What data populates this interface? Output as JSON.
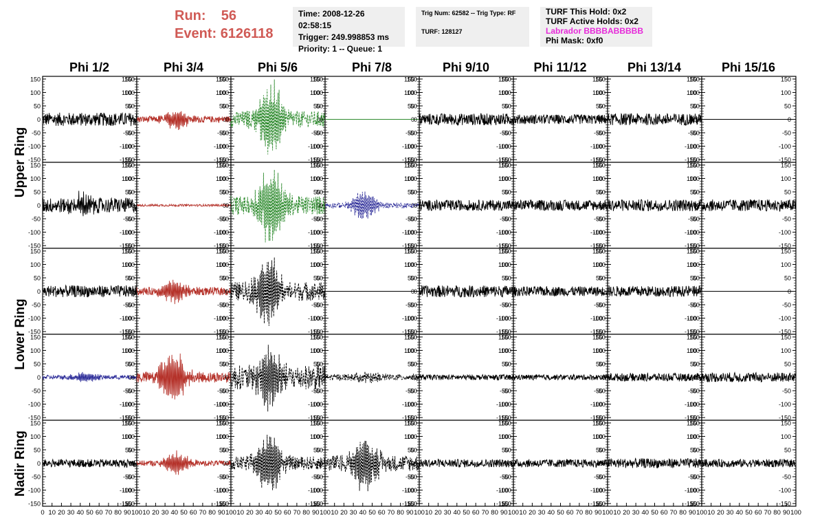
{
  "header": {
    "run_label": "Run:",
    "run_value": "56",
    "event_label": "Event:",
    "event_value": "6126118",
    "time": "Time: 2008-12-26 02:58:15",
    "trigger": "Trigger: 249.998853 ms",
    "priority": "Priority: 1 -- Queue: 1",
    "trig_num": "Trig Num: 62582 -- Trig Type: RF",
    "turf": "TURF: 128127",
    "turf_hold": "TURF This Hold: 0x2",
    "turf_active": "TURF Active Holds: 0x2",
    "labrador": "Labrador BBBBABBBBB",
    "phi_mask": "Phi Mask: 0xf0"
  },
  "colors": {
    "red": "#b5322a",
    "green": "#2e8b2e",
    "blue": "#2f2f9a",
    "black": "#000000",
    "header_accent": "#d05a55",
    "magenta": "#e629d9"
  },
  "chart_data": {
    "type": "line",
    "columns": [
      "Phi 1/2",
      "Phi 3/4",
      "Phi 5/6",
      "Phi 7/8",
      "Phi 9/10",
      "Phi 11/12",
      "Phi 13/14",
      "Phi 15/16"
    ],
    "rows": [
      "Upper Ring",
      "Lower Ring",
      "Nadir Ring"
    ],
    "xlim": [
      0,
      100
    ],
    "ylim": [
      -160,
      160
    ],
    "y_ticks": [
      -150,
      -100,
      -50,
      0,
      50,
      100,
      150
    ],
    "x_ticks": [
      0,
      10,
      20,
      30,
      40,
      50,
      60,
      70,
      80,
      90,
      100
    ],
    "panels": [
      [
        {
          "color": "black",
          "style": "solid",
          "amp": 25,
          "peak": 0,
          "center": 45
        },
        {
          "color": "red",
          "style": "solid",
          "amp": 12,
          "peak": 40,
          "center": 42
        },
        {
          "color": "green",
          "style": "dashed",
          "amp": 30,
          "peak": 150,
          "center": 42
        },
        {
          "color": "green",
          "style": "flat",
          "amp": 0,
          "peak": 0,
          "center": 50
        },
        {
          "color": "black",
          "style": "solid",
          "amp": 22,
          "peak": 0,
          "center": 50
        },
        {
          "color": "black",
          "style": "solid",
          "amp": 18,
          "peak": 0,
          "center": 50
        },
        {
          "color": "black",
          "style": "solid",
          "amp": 22,
          "peak": 0,
          "center": 50
        },
        {
          "color": "black",
          "style": "flat",
          "amp": 0,
          "peak": 0,
          "center": 50
        }
      ],
      [
        {
          "color": "black",
          "style": "solid",
          "amp": 28,
          "peak": 40,
          "center": 42
        },
        {
          "color": "red",
          "style": "solid",
          "amp": 4,
          "peak": 0,
          "center": 50
        },
        {
          "color": "green",
          "style": "dashed",
          "amp": 35,
          "peak": 150,
          "center": 42
        },
        {
          "color": "blue",
          "style": "dashed",
          "amp": 10,
          "peak": 60,
          "center": 42
        },
        {
          "color": "black",
          "style": "solid",
          "amp": 20,
          "peak": 0,
          "center": 50
        },
        {
          "color": "black",
          "style": "solid",
          "amp": 20,
          "peak": 0,
          "center": 50
        },
        {
          "color": "black",
          "style": "solid",
          "amp": 22,
          "peak": 0,
          "center": 50
        },
        {
          "color": "black",
          "style": "solid",
          "amp": 22,
          "peak": 0,
          "center": 50
        }
      ],
      [
        {
          "color": "black",
          "style": "solid",
          "amp": 22,
          "peak": 0,
          "center": 50
        },
        {
          "color": "red",
          "style": "solid",
          "amp": 15,
          "peak": 45,
          "center": 40
        },
        {
          "color": "black",
          "style": "dashed",
          "amp": 35,
          "peak": 130,
          "center": 40
        },
        {
          "color": "black",
          "style": "flat",
          "amp": 0,
          "peak": 0,
          "center": 50
        },
        {
          "color": "black",
          "style": "solid",
          "amp": 22,
          "peak": 0,
          "center": 50
        },
        {
          "color": "black",
          "style": "solid",
          "amp": 18,
          "peak": 0,
          "center": 50
        },
        {
          "color": "black",
          "style": "solid",
          "amp": 20,
          "peak": 0,
          "center": 50
        },
        {
          "color": "black",
          "style": "flat",
          "amp": 0,
          "peak": 0,
          "center": 50
        }
      ],
      [
        {
          "color": "blue",
          "style": "solid",
          "amp": 8,
          "peak": 18,
          "center": 45
        },
        {
          "color": "red",
          "style": "solid",
          "amp": 20,
          "peak": 110,
          "center": 38
        },
        {
          "color": "black",
          "style": "dashed",
          "amp": 45,
          "peak": 120,
          "center": 40
        },
        {
          "color": "black",
          "style": "dashed",
          "amp": 12,
          "peak": 20,
          "center": 45
        },
        {
          "color": "black",
          "style": "solid",
          "amp": 10,
          "peak": 0,
          "center": 50
        },
        {
          "color": "black",
          "style": "solid",
          "amp": 10,
          "peak": 0,
          "center": 50
        },
        {
          "color": "black",
          "style": "solid",
          "amp": 15,
          "peak": 0,
          "center": 50
        },
        {
          "color": "black",
          "style": "solid",
          "amp": 18,
          "peak": 0,
          "center": 50
        }
      ],
      [
        {
          "color": "black",
          "style": "solid",
          "amp": 15,
          "peak": 0,
          "center": 50
        },
        {
          "color": "red",
          "style": "solid",
          "amp": 10,
          "peak": 45,
          "center": 42
        },
        {
          "color": "black",
          "style": "dashed",
          "amp": 25,
          "peak": 120,
          "center": 40
        },
        {
          "color": "black",
          "style": "dashed",
          "amp": 30,
          "peak": 110,
          "center": 42
        },
        {
          "color": "black",
          "style": "solid",
          "amp": 15,
          "peak": 0,
          "center": 50
        },
        {
          "color": "black",
          "style": "solid",
          "amp": 15,
          "peak": 0,
          "center": 50
        },
        {
          "color": "black",
          "style": "solid",
          "amp": 18,
          "peak": 0,
          "center": 50
        },
        {
          "color": "black",
          "style": "solid",
          "amp": 15,
          "peak": 0,
          "center": 50
        }
      ]
    ]
  }
}
